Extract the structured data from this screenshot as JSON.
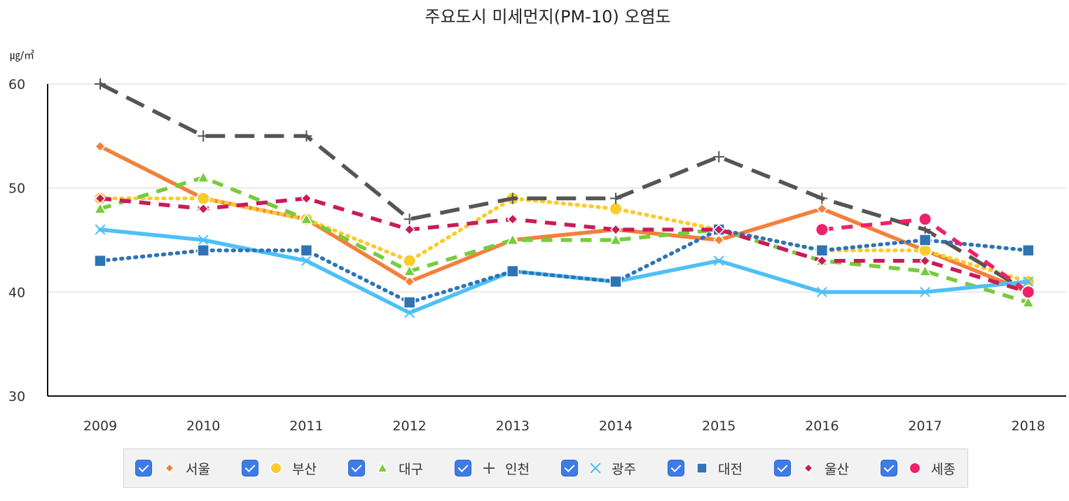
{
  "chart_data": {
    "type": "line",
    "title": "주요도시 미세먼지(PM-10) 오염도",
    "unit_label": "㎍/㎥",
    "ylim": [
      30,
      60
    ],
    "yticks": [
      30,
      40,
      50,
      60
    ],
    "grid": true,
    "legend_position": "bottom",
    "x": [
      "2009",
      "2010",
      "2011",
      "2012",
      "2013",
      "2014",
      "2015",
      "2016",
      "2017",
      "2018"
    ],
    "series": [
      {
        "name": "서울",
        "color": "#f57f3b",
        "marker": "diamond",
        "dash": "solid",
        "values": [
          54,
          49,
          47,
          41,
          45,
          46,
          45,
          48,
          44,
          40
        ]
      },
      {
        "name": "부산",
        "color": "#f9cc2c",
        "marker": "circle",
        "dash": "dot",
        "values": [
          49,
          49,
          47,
          43,
          49,
          48,
          46,
          44,
          44,
          41
        ]
      },
      {
        "name": "대구",
        "color": "#77cc3c",
        "marker": "triangle",
        "dash": "dash",
        "values": [
          48,
          51,
          47,
          42,
          45,
          45,
          46,
          43,
          42,
          39
        ]
      },
      {
        "name": "인천",
        "color": "#555555",
        "marker": "plus",
        "dash": "longdash",
        "values": [
          60,
          55,
          55,
          47,
          49,
          49,
          53,
          49,
          46,
          40
        ]
      },
      {
        "name": "광주",
        "color": "#4ec0f7",
        "marker": "cross",
        "dash": "solid",
        "values": [
          46,
          45,
          43,
          38,
          42,
          41,
          43,
          40,
          40,
          41
        ]
      },
      {
        "name": "대전",
        "color": "#2e74b5",
        "marker": "square",
        "dash": "dot",
        "values": [
          43,
          44,
          44,
          39,
          42,
          41,
          46,
          44,
          45,
          44
        ]
      },
      {
        "name": "울산",
        "color": "#c91b5a",
        "marker": "diamond",
        "dash": "dash",
        "values": [
          49,
          48,
          49,
          46,
          47,
          46,
          46,
          43,
          43,
          40
        ]
      },
      {
        "name": "세종",
        "color": "#f0206a",
        "marker": "circle",
        "dash": "dash",
        "values": [
          null,
          null,
          null,
          null,
          null,
          null,
          null,
          46,
          47,
          40
        ]
      }
    ]
  }
}
